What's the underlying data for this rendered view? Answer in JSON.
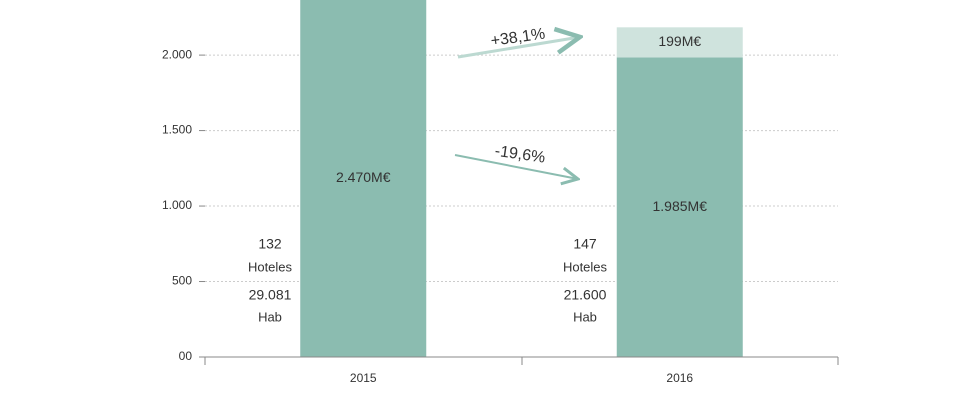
{
  "chart_data": {
    "type": "stacked-bar",
    "categories": [
      "2015",
      "2016"
    ],
    "series": [
      {
        "color": "#8bbcb0",
        "values": [
          2470,
          1985
        ],
        "value_labels": [
          "2.470M€",
          "1.985M€"
        ]
      },
      {
        "color": "#cfe3dd",
        "values": [
          null,
          199
        ],
        "value_labels": [
          null,
          "199M€"
        ]
      }
    ],
    "ylim": [
      0,
      2365
    ],
    "yticks": [
      {
        "value": 0,
        "label": "00"
      },
      500,
      {
        "value": 1000,
        "label": "1.000"
      },
      {
        "value": 1500,
        "label": "1.500"
      },
      {
        "value": 2000,
        "label": "2.000"
      }
    ],
    "grid": true,
    "annotations": [
      "+38,1%",
      "-19,6%"
    ],
    "notes": [
      [
        "132",
        "Hoteles",
        "29.081",
        "Hab"
      ],
      [
        "147",
        "Hoteles",
        "21.600",
        "Hab"
      ]
    ]
  }
}
